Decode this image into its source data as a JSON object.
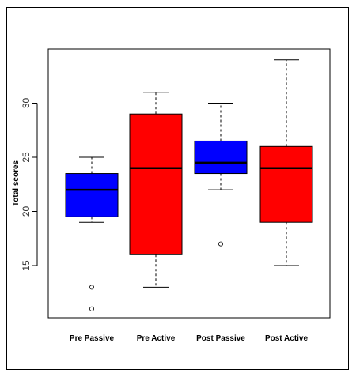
{
  "chart_data": {
    "type": "box",
    "title": "",
    "xlabel": "",
    "ylabel": "Total scores",
    "ylim": [
      10,
      35
    ],
    "yticks": [
      15,
      20,
      25,
      30
    ],
    "grid": false,
    "categories": [
      "Pre Passive",
      "Pre Active",
      "Post Passive",
      "Post Active"
    ],
    "boxes": [
      {
        "category": "Pre Passive",
        "color": "#0000ff",
        "whisker_low": 19,
        "q1": 19.5,
        "median": 22,
        "q3": 23.5,
        "whisker_high": 25,
        "outliers": [
          13,
          11
        ]
      },
      {
        "category": "Pre Active",
        "color": "#ff0000",
        "whisker_low": 13,
        "q1": 16,
        "median": 24,
        "q3": 29,
        "whisker_high": 31,
        "outliers": []
      },
      {
        "category": "Post Passive",
        "color": "#0000ff",
        "whisker_low": 22,
        "q1": 23.5,
        "median": 24.5,
        "q3": 26.5,
        "whisker_high": 30,
        "outliers": [
          17
        ]
      },
      {
        "category": "Post Active",
        "color": "#ff0000",
        "whisker_low": 15,
        "q1": 19,
        "median": 24,
        "q3": 26,
        "whisker_high": 34,
        "outliers": []
      }
    ]
  }
}
